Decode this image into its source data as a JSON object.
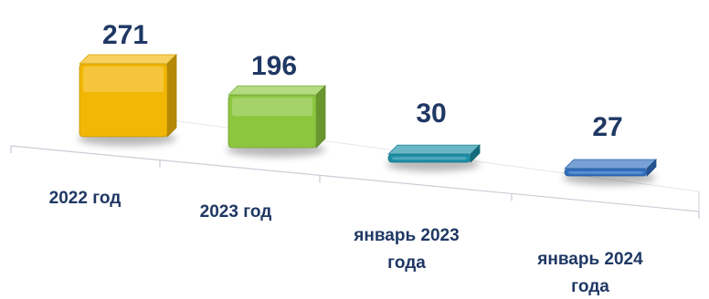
{
  "chart_data": {
    "type": "bar",
    "title": "",
    "xlabel": "",
    "ylabel": "",
    "categories": [
      "2022 год",
      "2023 год",
      "январь 2023 года",
      "январь 2024 года"
    ],
    "category_lines": [
      [
        "2022 год"
      ],
      [
        "2023 год"
      ],
      [
        "январь 2023",
        "года"
      ],
      [
        "январь 2024",
        "года"
      ]
    ],
    "values": [
      271,
      196,
      30,
      27
    ],
    "value_labels": [
      "271",
      "196",
      "30",
      "27"
    ],
    "ylim": [
      0,
      271
    ],
    "grid": false,
    "legend": "none",
    "colors": [
      "#f2b705",
      "#8cc63f",
      "#1b8fa6",
      "#2f6fbf"
    ],
    "text_color": "#1f3864"
  }
}
